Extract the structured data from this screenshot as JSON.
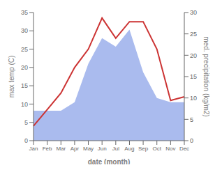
{
  "chart_data": {
    "type": "line",
    "categories": [
      "Jan",
      "Feb",
      "Mar",
      "Apr",
      "May",
      "Jun",
      "Jul",
      "Aug",
      "Sep",
      "Oct",
      "Nov",
      "Dec"
    ],
    "series": [
      {
        "type": "area",
        "color": "#aabbee",
        "axis": "y2",
        "values": [
          7,
          7,
          7,
          9,
          18,
          24,
          22,
          26,
          16,
          10,
          9,
          9
        ]
      },
      {
        "type": "line",
        "color": "#cc3333",
        "values": [
          4,
          8.5,
          13,
          20,
          25,
          33.5,
          28,
          32.5,
          32.5,
          25,
          11,
          12
        ]
      }
    ],
    "xlabel": "date (month)",
    "ylabel": "max temp (C)",
    "y2label": "med. precipitation (kg/m2)",
    "ylim": [
      0,
      35
    ],
    "yticks": [
      0,
      5,
      10,
      15,
      20,
      25,
      30,
      35
    ],
    "y2lim": [
      0,
      30
    ],
    "y2ticks": [
      0,
      5,
      10,
      15,
      20,
      25,
      30
    ],
    "grid": false
  }
}
